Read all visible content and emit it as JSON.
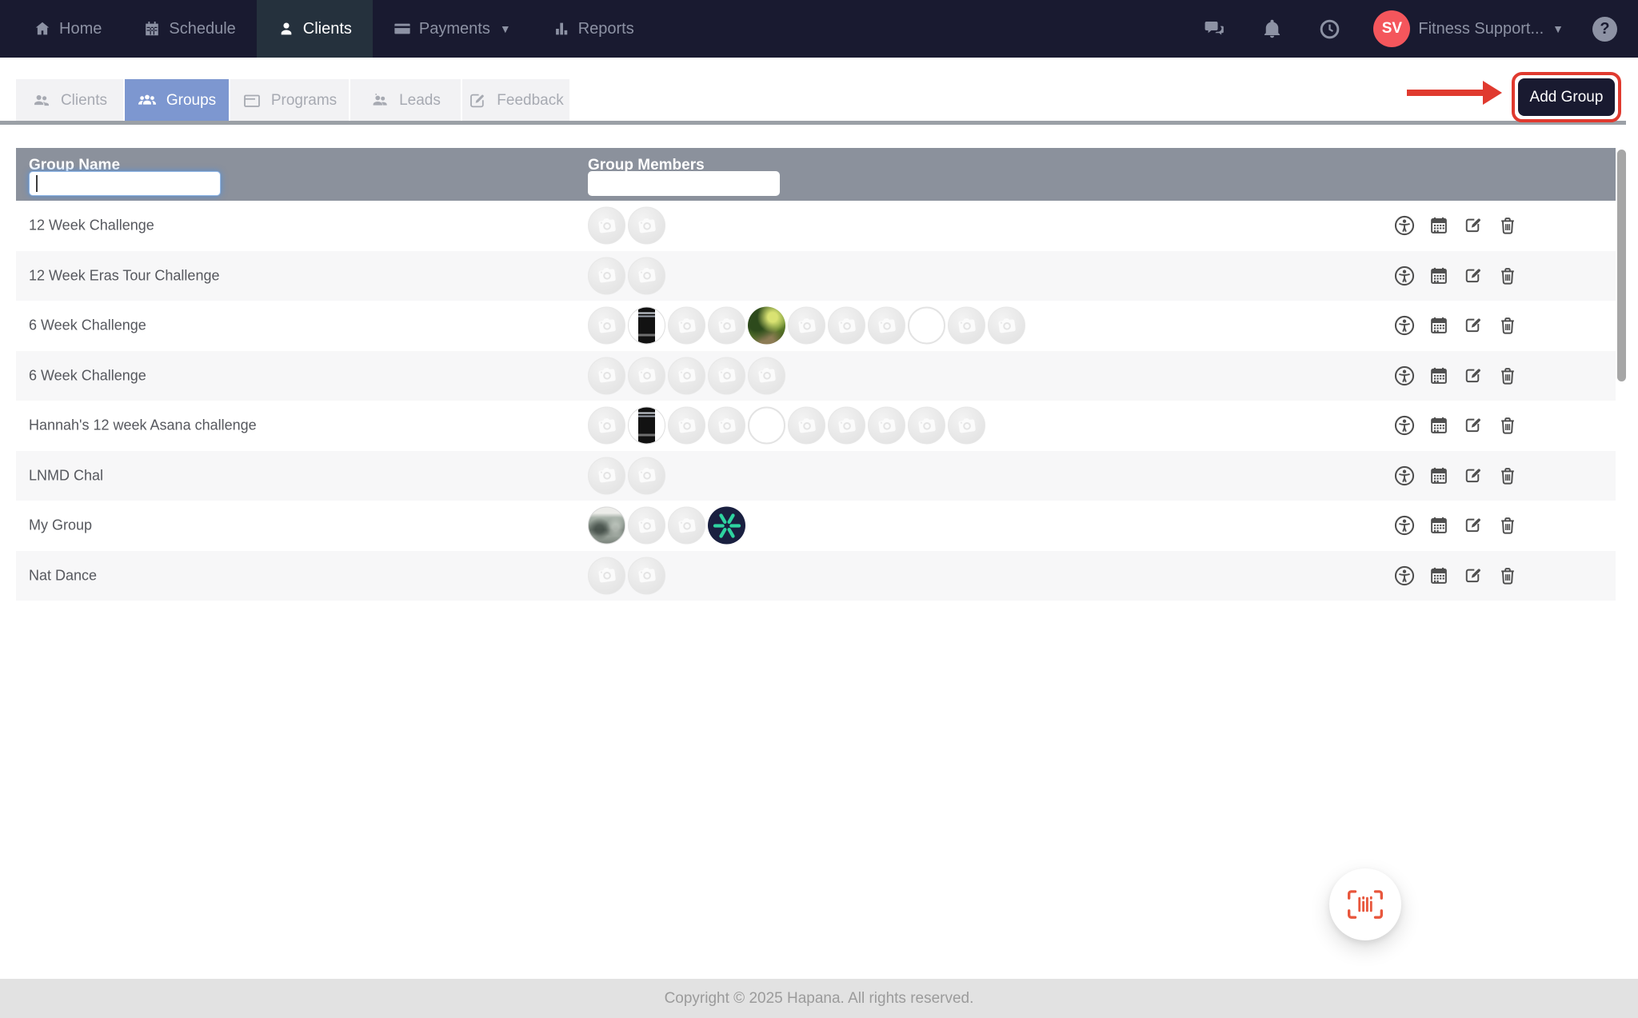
{
  "nav": {
    "items": [
      {
        "label": "Home",
        "icon": "home-icon",
        "active": false
      },
      {
        "label": "Schedule",
        "icon": "calendar-icon",
        "active": false
      },
      {
        "label": "Clients",
        "icon": "person-icon",
        "active": true
      },
      {
        "label": "Payments",
        "icon": "credit-card-icon",
        "active": false,
        "has_dropdown": true
      },
      {
        "label": "Reports",
        "icon": "bar-chart-icon",
        "active": false
      }
    ],
    "right_icons": [
      "chat-icon",
      "bell-icon",
      "clock-icon"
    ],
    "avatar_initials": "SV",
    "account_label": "Fitness Support...",
    "help_glyph": "?"
  },
  "tabs": [
    {
      "label": "Clients",
      "icon": "clients-icon",
      "active": false
    },
    {
      "label": "Groups",
      "icon": "groups-icon",
      "active": true
    },
    {
      "label": "Programs",
      "icon": "programs-icon",
      "active": false
    },
    {
      "label": "Leads",
      "icon": "leads-icon",
      "active": false
    },
    {
      "label": "Feedback",
      "icon": "feedback-icon",
      "active": false
    }
  ],
  "toolbar": {
    "add_group_label": "Add Group"
  },
  "annotation": {
    "type": "red-arrow-and-box",
    "points_to": "Add Group"
  },
  "table": {
    "columns": [
      "Group Name",
      "Group Members"
    ],
    "filters": {
      "group_name_value": "",
      "group_members_value": "",
      "group_name_focused": true
    },
    "row_actions": [
      "universal-access",
      "calendar",
      "edit",
      "delete"
    ],
    "rows": [
      {
        "name": "12 Week Challenge",
        "members": [
          "default",
          "default"
        ]
      },
      {
        "name": "12 Week Eras Tour Challenge",
        "members": [
          "default",
          "default"
        ]
      },
      {
        "name": "6 Week Challenge",
        "members": [
          "default",
          "dark-photo",
          "default",
          "default",
          "forest-photo",
          "default",
          "default",
          "default",
          "blank",
          "default",
          "default"
        ]
      },
      {
        "name": "6 Week Challenge",
        "members": [
          "default",
          "default",
          "default",
          "default",
          "default"
        ]
      },
      {
        "name": "Hannah's 12 week Asana challenge",
        "members": [
          "default",
          "dark-photo",
          "default",
          "default",
          "blank",
          "default",
          "default",
          "default",
          "default",
          "default"
        ]
      },
      {
        "name": "LNMD Chal",
        "members": [
          "default",
          "default"
        ]
      },
      {
        "name": "My Group",
        "members": [
          "gym-photo",
          "default",
          "default",
          "teal-logo"
        ]
      },
      {
        "name": "Nat Dance",
        "members": [
          "default",
          "default"
        ]
      }
    ]
  },
  "fab": {
    "icon": "barcode-scan-icon"
  },
  "footer": {
    "copyright": "Copyright © 2025 Hapana. All rights reserved."
  },
  "colors": {
    "nav_bg": "#191a30",
    "nav_active_bg": "#25313d",
    "active_tab_blue": "#7d97d0",
    "table_header_gray": "#8b919c",
    "avatar_coral": "#f4565c",
    "annotation_red": "#e03a2f",
    "fab_orange": "#e8563c",
    "logo_teal": "#2ed3a0"
  }
}
